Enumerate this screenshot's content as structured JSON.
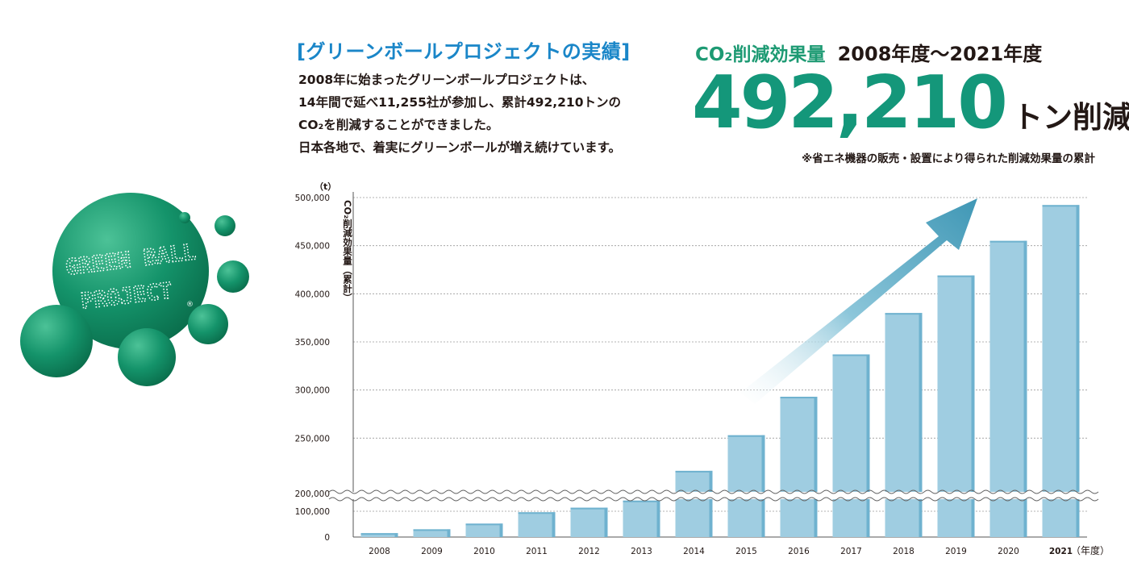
{
  "logo": {
    "line1": "GREEN BALL",
    "line2": "PROJECT",
    "registered": "®",
    "colors": {
      "ball": "#138a63",
      "ball_light": "#3fb58a"
    }
  },
  "section": {
    "title": "[グリーンボールプロジェクトの実績]",
    "description": [
      "2008年に始まったグリーンボールプロジェクトは、",
      "14年間で延べ11,255社が参加し、累計492,210トンの",
      "CO₂を削減することができました。",
      "日本各地で、着実にグリーンボールが増え続けています。"
    ]
  },
  "effect": {
    "label": "CO₂削減効果量",
    "period": "2008年度～2021年度",
    "total": "492,210",
    "unit": "トン削減",
    "note": "※省エネ機器の販売・設置により得られた削減効果量の累計",
    "colors": {
      "label": "#1d9a73",
      "number": "#14977a"
    }
  },
  "chart_data": {
    "type": "bar",
    "ylabel": "CO₂削減効果量（累計）",
    "yunit": "（t）",
    "xunit": "（年度）",
    "categories": [
      "2008",
      "2009",
      "2010",
      "2011",
      "2012",
      "2013",
      "2014",
      "2015",
      "2016",
      "2017",
      "2018",
      "2019",
      "2020",
      "2021"
    ],
    "values": [
      15000,
      30000,
      52000,
      96000,
      120000,
      160000,
      216000,
      253000,
      293000,
      337000,
      380000,
      419000,
      455000,
      492210
    ],
    "highlight_category": "2021",
    "yticks": [
      "500,000",
      "450,000",
      "400,000",
      "350,000",
      "300,000",
      "250,000",
      "200,000",
      "100,000",
      "0"
    ],
    "axis_break": true,
    "grid": true,
    "trend_arrow": true,
    "colors": {
      "bar": "#9fcde1",
      "bar_shade": "#6fb2cf",
      "arrow": "#4ea2be",
      "grid": "#9a9a9a"
    }
  }
}
